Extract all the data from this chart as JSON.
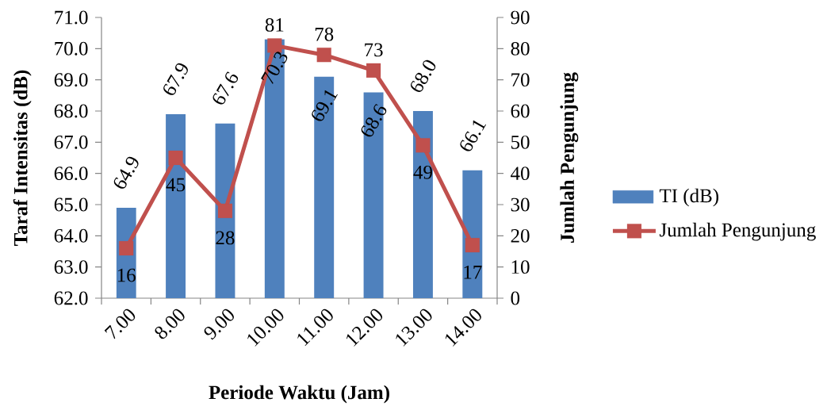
{
  "chart_data": {
    "type": "bar",
    "categories": [
      "7.00",
      "8.00",
      "9.00",
      "10.00",
      "11.00",
      "12.00",
      "13.00",
      "14.00"
    ],
    "xlabel": "Periode Waktu (Jam)",
    "ylabel": "Taraf Intensitas (dB)",
    "y2label": "Jumlah Pengunjung",
    "series": [
      {
        "name": "TI (dB)",
        "color": "#4f81bd",
        "values": [
          64.9,
          67.9,
          67.6,
          70.3,
          69.1,
          68.6,
          68.0,
          66.1
        ],
        "value_labels": [
          "64.9",
          "67.9",
          "67.6",
          "70.3",
          "69.1",
          "68.6",
          "68.0",
          "66.1"
        ]
      },
      {
        "name": "Jumlah Pengunjung",
        "type": "line",
        "axis": "y2",
        "color": "#c0504d",
        "marker": "square",
        "line_style": "solid",
        "values": [
          16,
          45,
          28,
          81,
          78,
          73,
          49,
          17
        ],
        "value_labels": [
          "16",
          "45",
          "28",
          "81",
          "78",
          "73",
          "49",
          "17"
        ]
      }
    ],
    "ylim": [
      62,
      71
    ],
    "yticks": [
      {
        "value": 62,
        "label": "62.0"
      },
      {
        "value": 63,
        "label": "63.0"
      },
      {
        "value": 64,
        "label": "64.0"
      },
      {
        "value": 65,
        "label": "65.0"
      },
      {
        "value": 66,
        "label": "66.0"
      },
      {
        "value": 67,
        "label": "67.0"
      },
      {
        "value": 68,
        "label": "68.0"
      },
      {
        "value": 69,
        "label": "69.0"
      },
      {
        "value": 70,
        "label": "70.0"
      },
      {
        "value": 71,
        "label": "71.0"
      }
    ],
    "y2lim": [
      0,
      90
    ],
    "y2ticks": [
      0,
      10,
      20,
      30,
      40,
      50,
      60,
      70,
      80,
      90
    ],
    "legend": "right"
  }
}
